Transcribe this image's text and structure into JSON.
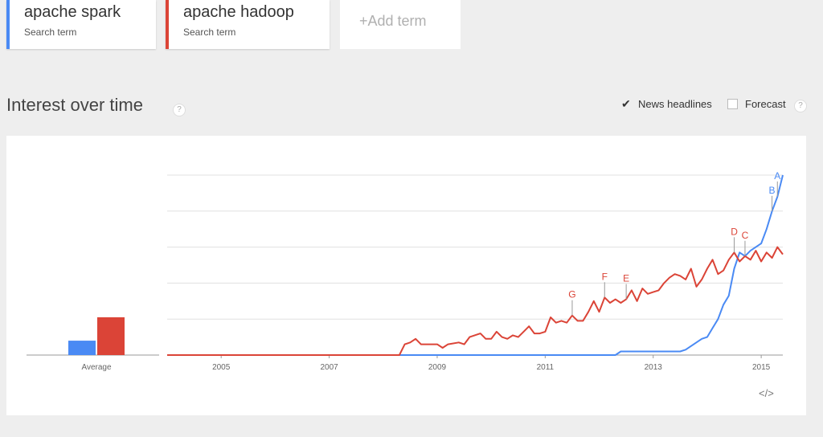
{
  "terms": [
    {
      "name": "apache spark",
      "subtitle": "Search term",
      "color": "#4a8af4"
    },
    {
      "name": "apache hadoop",
      "subtitle": "Search term",
      "color": "#db4437"
    }
  ],
  "add_term_label": "+Add term",
  "section_title": "Interest over time",
  "help_glyph": "?",
  "options": {
    "news_headlines": "News headlines",
    "forecast": "Forecast",
    "news_checked": true,
    "forecast_checked": false
  },
  "embed_glyph": "</>",
  "chart_data": {
    "type": "line",
    "title": "",
    "xlabel": "",
    "ylabel": "",
    "x_ticks": [
      "2005",
      "2007",
      "2009",
      "2011",
      "2013",
      "2015"
    ],
    "ylim": [
      0,
      100
    ],
    "grid": true,
    "average": {
      "label": "Average",
      "values": [
        8,
        21
      ]
    },
    "annotations": [
      {
        "letter": "A",
        "x": 2015.3,
        "series": "apache spark"
      },
      {
        "letter": "B",
        "x": 2015.2,
        "series": "apache spark"
      },
      {
        "letter": "C",
        "x": 2014.7,
        "series": "apache hadoop"
      },
      {
        "letter": "D",
        "x": 2014.5,
        "series": "apache hadoop"
      },
      {
        "letter": "E",
        "x": 2012.5,
        "series": "apache hadoop"
      },
      {
        "letter": "F",
        "x": 2012.1,
        "series": "apache hadoop"
      },
      {
        "letter": "G",
        "x": 2011.5,
        "series": "apache hadoop"
      }
    ],
    "series": [
      {
        "name": "apache spark",
        "color": "#4a8af4",
        "points": [
          [
            2004.0,
            0
          ],
          [
            2012.3,
            0
          ],
          [
            2012.4,
            2
          ],
          [
            2013.5,
            2
          ],
          [
            2013.6,
            3
          ],
          [
            2013.8,
            7
          ],
          [
            2013.9,
            9
          ],
          [
            2014.0,
            10
          ],
          [
            2014.1,
            15
          ],
          [
            2014.2,
            20
          ],
          [
            2014.3,
            28
          ],
          [
            2014.4,
            33
          ],
          [
            2014.5,
            48
          ],
          [
            2014.6,
            57
          ],
          [
            2014.7,
            55
          ],
          [
            2014.8,
            58
          ],
          [
            2014.9,
            60
          ],
          [
            2015.0,
            62
          ],
          [
            2015.1,
            70
          ],
          [
            2015.2,
            80
          ],
          [
            2015.3,
            88
          ],
          [
            2015.4,
            100
          ]
        ]
      },
      {
        "name": "apache hadoop",
        "color": "#db4437",
        "points": [
          [
            2004.0,
            0
          ],
          [
            2008.3,
            0
          ],
          [
            2008.4,
            6
          ],
          [
            2008.5,
            7
          ],
          [
            2008.6,
            9
          ],
          [
            2008.7,
            6
          ],
          [
            2008.8,
            6
          ],
          [
            2009.0,
            6
          ],
          [
            2009.1,
            4
          ],
          [
            2009.2,
            6
          ],
          [
            2009.4,
            7
          ],
          [
            2009.5,
            6
          ],
          [
            2009.6,
            10
          ],
          [
            2009.8,
            12
          ],
          [
            2009.9,
            9
          ],
          [
            2010.0,
            9
          ],
          [
            2010.1,
            13
          ],
          [
            2010.2,
            10
          ],
          [
            2010.3,
            9
          ],
          [
            2010.4,
            11
          ],
          [
            2010.5,
            10
          ],
          [
            2010.6,
            13
          ],
          [
            2010.7,
            16
          ],
          [
            2010.8,
            12
          ],
          [
            2010.9,
            12
          ],
          [
            2011.0,
            13
          ],
          [
            2011.1,
            21
          ],
          [
            2011.2,
            18
          ],
          [
            2011.3,
            19
          ],
          [
            2011.4,
            18
          ],
          [
            2011.5,
            22
          ],
          [
            2011.6,
            19
          ],
          [
            2011.7,
            19
          ],
          [
            2011.8,
            24
          ],
          [
            2011.9,
            30
          ],
          [
            2012.0,
            24
          ],
          [
            2012.1,
            32
          ],
          [
            2012.2,
            29
          ],
          [
            2012.3,
            31
          ],
          [
            2012.4,
            29
          ],
          [
            2012.5,
            31
          ],
          [
            2012.6,
            36
          ],
          [
            2012.7,
            30
          ],
          [
            2012.8,
            37
          ],
          [
            2012.9,
            34
          ],
          [
            2013.0,
            35
          ],
          [
            2013.1,
            36
          ],
          [
            2013.2,
            40
          ],
          [
            2013.3,
            43
          ],
          [
            2013.4,
            45
          ],
          [
            2013.5,
            44
          ],
          [
            2013.6,
            42
          ],
          [
            2013.7,
            48
          ],
          [
            2013.8,
            38
          ],
          [
            2013.9,
            42
          ],
          [
            2014.0,
            48
          ],
          [
            2014.1,
            53
          ],
          [
            2014.2,
            45
          ],
          [
            2014.3,
            47
          ],
          [
            2014.4,
            53
          ],
          [
            2014.5,
            57
          ],
          [
            2014.6,
            52
          ],
          [
            2014.7,
            55
          ],
          [
            2014.8,
            53
          ],
          [
            2014.9,
            58
          ],
          [
            2015.0,
            52
          ],
          [
            2015.1,
            57
          ],
          [
            2015.2,
            54
          ],
          [
            2015.3,
            60
          ],
          [
            2015.4,
            56
          ]
        ]
      }
    ]
  }
}
